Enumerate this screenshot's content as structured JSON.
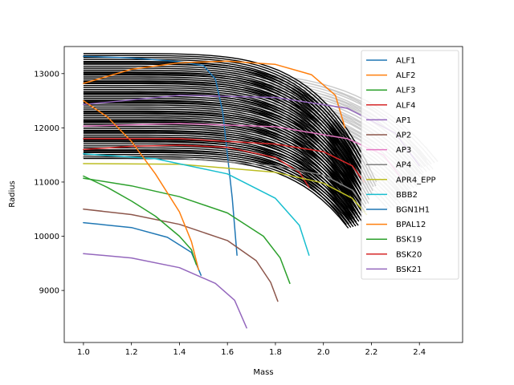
{
  "chart_data": {
    "type": "line",
    "xlabel": "Mass",
    "ylabel": "Radius",
    "xlim": [
      0.92,
      2.58
    ],
    "ylim": [
      8040,
      13500
    ],
    "xticks": [
      "1.0",
      "1.2",
      "1.4",
      "1.6",
      "1.8",
      "2.0",
      "2.2",
      "2.4"
    ],
    "yticks": [
      "9000",
      "10000",
      "11000",
      "12000",
      "13000"
    ],
    "legend_position": "upper right",
    "background_bands": [
      {
        "name": "posterior samples (grey)",
        "color": "#c8c8c8",
        "r_top": 13050,
        "r_bottom": 11850,
        "m_end_top": 2.46,
        "m_end_bottom": 2.3,
        "r_end_top": 11400,
        "r_end_bottom": 10500,
        "count": 40
      },
      {
        "name": "posterior samples (black)",
        "color": "#000000",
        "r_top": 13350,
        "r_bottom": 11450,
        "m_end_top": 2.2,
        "m_end_bottom": 2.12,
        "r_end_top": 11000,
        "r_end_bottom": 10150,
        "count": 70
      }
    ],
    "series": [
      {
        "name": "ALF1",
        "color": "#1f77b4",
        "points": [
          [
            1.0,
            13320
          ],
          [
            1.2,
            13290
          ],
          [
            1.4,
            13220
          ],
          [
            1.5,
            13150
          ],
          [
            1.55,
            12900
          ],
          [
            1.58,
            12300
          ],
          [
            1.6,
            11500
          ],
          [
            1.62,
            10700
          ],
          [
            1.64,
            9650
          ]
        ]
      },
      {
        "name": "ALF2",
        "color": "#ff7f0e",
        "points": [
          [
            1.0,
            12820
          ],
          [
            1.2,
            13080
          ],
          [
            1.4,
            13200
          ],
          [
            1.6,
            13230
          ],
          [
            1.8,
            13170
          ],
          [
            1.95,
            12980
          ],
          [
            2.05,
            12600
          ],
          [
            2.09,
            12000
          ]
        ]
      },
      {
        "name": "ALF3",
        "color": "#2ca02c",
        "points": [
          [
            1.0,
            11070
          ],
          [
            1.2,
            10930
          ],
          [
            1.4,
            10730
          ],
          [
            1.6,
            10430
          ],
          [
            1.75,
            10000
          ],
          [
            1.82,
            9600
          ],
          [
            1.86,
            9130
          ]
        ]
      },
      {
        "name": "ALF4",
        "color": "#d62728",
        "points": [
          [
            1.0,
            11600
          ],
          [
            1.2,
            11660
          ],
          [
            1.4,
            11680
          ],
          [
            1.6,
            11640
          ],
          [
            1.8,
            11450
          ],
          [
            1.9,
            11180
          ],
          [
            1.94,
            10900
          ]
        ]
      },
      {
        "name": "AP1",
        "color": "#9467bd",
        "points": [
          [
            1.0,
            12430
          ],
          [
            1.4,
            12600
          ],
          [
            1.8,
            12560
          ],
          [
            2.1,
            12360
          ],
          [
            2.3,
            11900
          ],
          [
            2.4,
            11300
          ]
        ]
      },
      {
        "name": "AP2",
        "color": "#8c564b",
        "points": [
          [
            1.0,
            10500
          ],
          [
            1.2,
            10400
          ],
          [
            1.4,
            10220
          ],
          [
            1.6,
            9920
          ],
          [
            1.72,
            9550
          ],
          [
            1.78,
            9150
          ],
          [
            1.81,
            8800
          ]
        ]
      },
      {
        "name": "AP3",
        "color": "#e377c2",
        "points": [
          [
            1.0,
            12030
          ],
          [
            1.4,
            12080
          ],
          [
            1.8,
            12020
          ],
          [
            2.1,
            11800
          ],
          [
            2.25,
            11500
          ],
          [
            2.32,
            11100
          ]
        ]
      },
      {
        "name": "AP4",
        "color": "#7f7f7f",
        "points": [
          [
            1.0,
            11460
          ],
          [
            1.4,
            11440
          ],
          [
            1.8,
            11300
          ],
          [
            2.0,
            11130
          ],
          [
            2.12,
            10850
          ],
          [
            2.16,
            10600
          ]
        ]
      },
      {
        "name": "APR4_EPP",
        "color": "#bcbd22",
        "points": [
          [
            1.0,
            11340
          ],
          [
            1.4,
            11330
          ],
          [
            1.8,
            11180
          ],
          [
            2.0,
            10980
          ],
          [
            2.12,
            10700
          ],
          [
            2.18,
            10400
          ]
        ]
      },
      {
        "name": "BBB2",
        "color": "#17becf",
        "points": [
          [
            1.0,
            11520
          ],
          [
            1.3,
            11430
          ],
          [
            1.6,
            11150
          ],
          [
            1.8,
            10700
          ],
          [
            1.9,
            10200
          ],
          [
            1.94,
            9650
          ]
        ]
      },
      {
        "name": "BGN1H1",
        "color": "#1f77b4",
        "points": [
          [
            1.0,
            10250
          ],
          [
            1.2,
            10160
          ],
          [
            1.35,
            9980
          ],
          [
            1.45,
            9700
          ],
          [
            1.49,
            9280
          ]
        ]
      },
      {
        "name": "BPAL12",
        "color": "#ff7f0e",
        "points": [
          [
            1.0,
            12500
          ],
          [
            1.1,
            12200
          ],
          [
            1.2,
            11750
          ],
          [
            1.3,
            11150
          ],
          [
            1.4,
            10450
          ],
          [
            1.45,
            9900
          ],
          [
            1.48,
            9380
          ]
        ]
      },
      {
        "name": "BSK19",
        "color": "#2ca02c",
        "points": [
          [
            1.0,
            11110
          ],
          [
            1.1,
            10900
          ],
          [
            1.2,
            10650
          ],
          [
            1.3,
            10370
          ],
          [
            1.4,
            10000
          ],
          [
            1.45,
            9750
          ],
          [
            1.47,
            9480
          ]
        ]
      },
      {
        "name": "BSK20",
        "color": "#d62728",
        "points": [
          [
            1.0,
            11800
          ],
          [
            1.4,
            11800
          ],
          [
            1.8,
            11700
          ],
          [
            2.0,
            11560
          ],
          [
            2.12,
            11300
          ],
          [
            2.17,
            11000
          ]
        ]
      },
      {
        "name": "BSK21",
        "color": "#9467bd",
        "points": [
          [
            1.0,
            9680
          ],
          [
            1.2,
            9600
          ],
          [
            1.4,
            9420
          ],
          [
            1.55,
            9130
          ],
          [
            1.63,
            8820
          ],
          [
            1.68,
            8310
          ]
        ]
      }
    ]
  }
}
